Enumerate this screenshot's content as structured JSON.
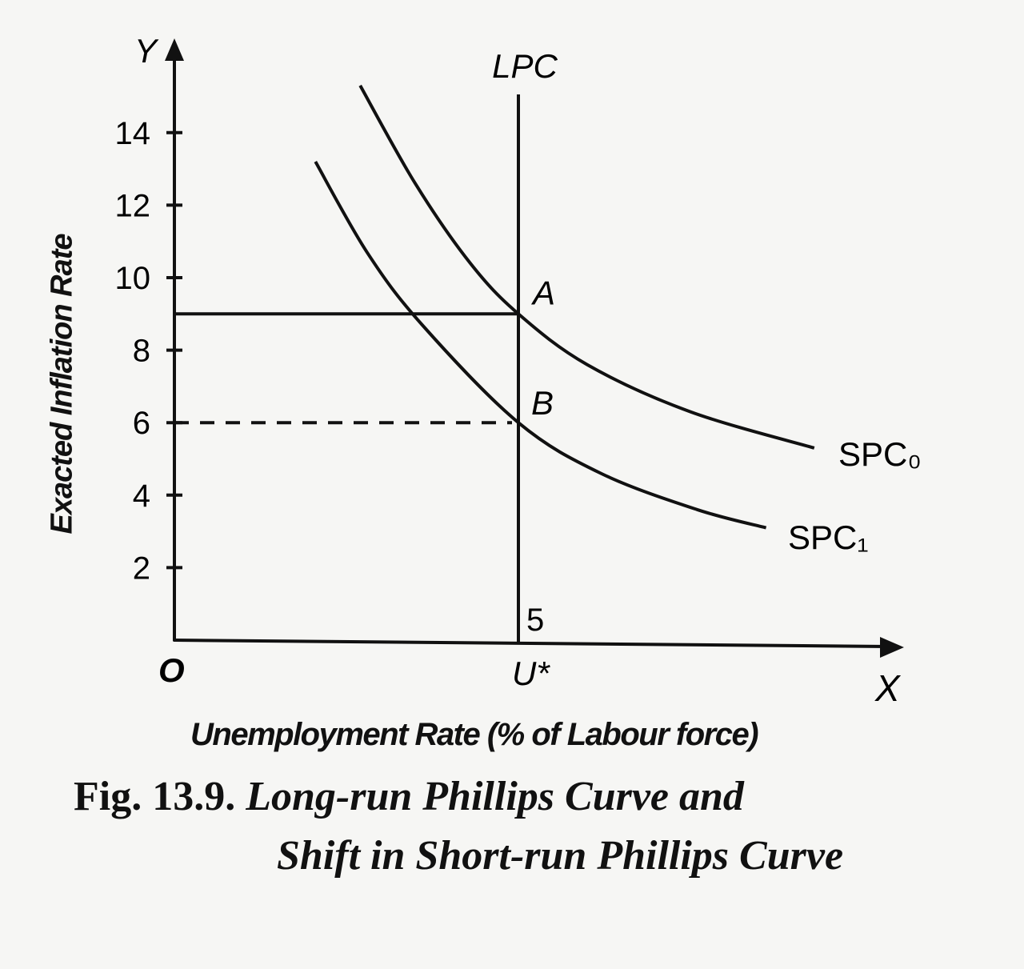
{
  "chart_data": {
    "type": "line",
    "title": "",
    "xlabel": "Unemployment Rate (% of Labour force)",
    "ylabel": "Exacted Inflation Rate",
    "x_axis_letter": "X",
    "y_axis_letter": "Y",
    "origin_label": "O",
    "ylim": [
      0,
      16
    ],
    "xlim": [
      0,
      10
    ],
    "y_ticks": [
      2,
      4,
      6,
      8,
      10,
      12,
      14
    ],
    "x_ticks": [],
    "natural_rate": {
      "x": 5,
      "value_label": "5",
      "axis_label": "U*"
    },
    "long_run": {
      "name": "LPC",
      "x": 5
    },
    "series": [
      {
        "name": "SPC₀",
        "x": [
          2.7,
          3.5,
          4.3,
          5,
          6,
          7.5,
          9.3
        ],
        "y": [
          15.3,
          12.6,
          10.4,
          9.0,
          7.6,
          6.3,
          5.3
        ]
      },
      {
        "name": "SPC₁",
        "x": [
          2.05,
          2.8,
          3.6,
          5,
          6.2,
          7.6,
          8.6
        ],
        "y": [
          13.2,
          10.7,
          8.7,
          6.0,
          4.6,
          3.6,
          3.1
        ]
      }
    ],
    "points": [
      {
        "label": "A",
        "x": 5,
        "y": 9
      },
      {
        "label": "B",
        "x": 5,
        "y": 6
      }
    ],
    "grid": false,
    "legend": "none"
  },
  "caption": {
    "fig_label": "Fig. 13.9.",
    "title_line1": "Long-run Phillips Curve and",
    "title_line2": "Shift in Short-run Phillips Curve"
  }
}
